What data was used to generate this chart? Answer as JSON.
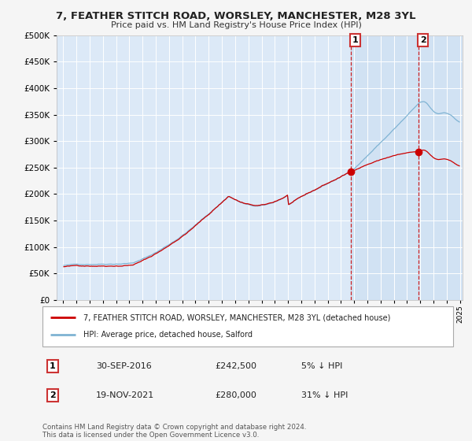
{
  "title": "7, FEATHER STITCH ROAD, WORSLEY, MANCHESTER, M28 3YL",
  "subtitle": "Price paid vs. HM Land Registry's House Price Index (HPI)",
  "legend_label_red": "7, FEATHER STITCH ROAD, WORSLEY, MANCHESTER, M28 3YL (detached house)",
  "legend_label_blue": "HPI: Average price, detached house, Salford",
  "sale1_date": "30-SEP-2016",
  "sale1_price": 242500,
  "sale1_pct": "5% ↓ HPI",
  "sale2_date": "19-NOV-2021",
  "sale2_price": 280000,
  "sale2_pct": "31% ↓ HPI",
  "footer": "Contains HM Land Registry data © Crown copyright and database right 2024.\nThis data is licensed under the Open Government Licence v3.0.",
  "ylim": [
    0,
    500000
  ],
  "yticks": [
    0,
    50000,
    100000,
    150000,
    200000,
    250000,
    300000,
    350000,
    400000,
    450000,
    500000
  ],
  "sale1_x": 2016.75,
  "sale2_x": 2021.88,
  "line_color_red": "#cc0000",
  "line_color_blue": "#7fb3d3",
  "grid_color": "#ffffff",
  "plot_bg": "#dce9f7",
  "fig_bg": "#f5f5f5"
}
